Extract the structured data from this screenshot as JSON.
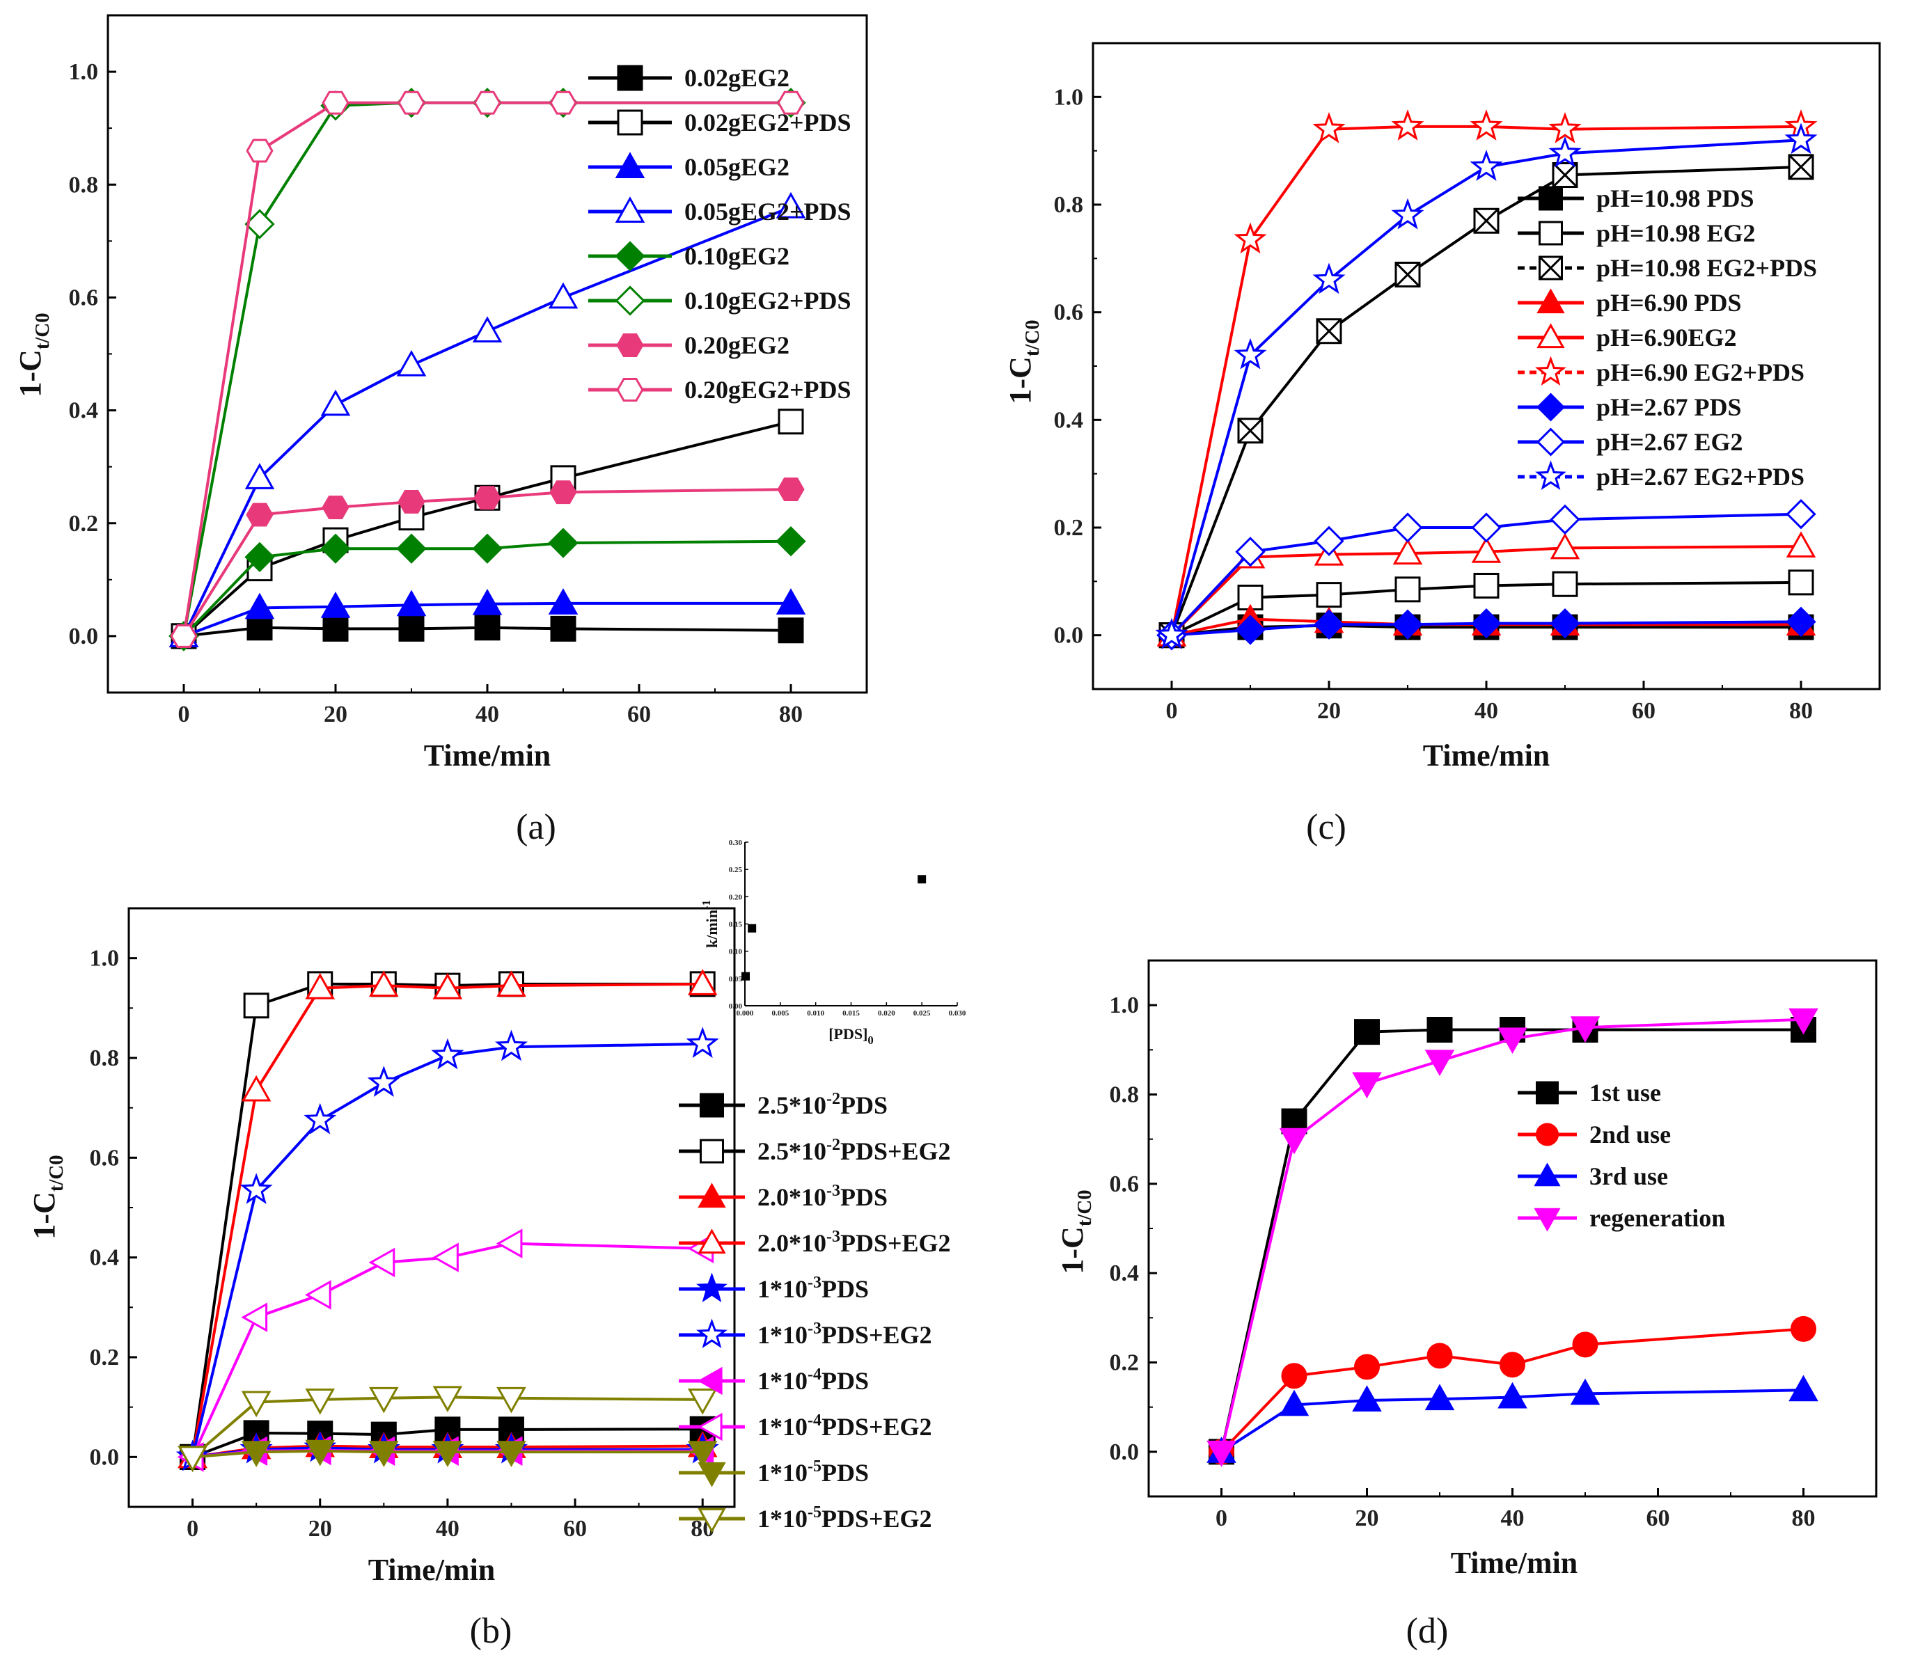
{
  "chart_data": [
    {
      "id": "a",
      "type": "line",
      "panel_label": "(a)",
      "xlabel": "Time/min",
      "ylabel": "1-C_t/C_0",
      "xlim": [
        -10,
        90
      ],
      "ylim": [
        -0.1,
        1.1
      ],
      "xticks": [
        "0",
        "20",
        "40",
        "60",
        "80"
      ],
      "yticks": [
        "0.0",
        "0.2",
        "0.4",
        "0.6",
        "0.8",
        "1.0"
      ],
      "x": [
        0,
        10,
        20,
        30,
        40,
        50,
        80
      ],
      "legend_position": "top-right",
      "series": [
        {
          "name": "0.02gEG2",
          "color": "#000000",
          "marker": "square",
          "filled": true,
          "values": [
            0,
            0.015,
            0.013,
            0.013,
            0.015,
            0.013,
            0.01
          ]
        },
        {
          "name": "0.02gEG2+PDS",
          "color": "#000000",
          "marker": "square",
          "filled": false,
          "values": [
            0,
            0.12,
            0.17,
            0.21,
            0.245,
            0.28,
            0.38
          ]
        },
        {
          "name": "0.05gEG2",
          "color": "#0000ff",
          "marker": "triangle",
          "filled": true,
          "values": [
            0,
            0.05,
            0.052,
            0.055,
            0.057,
            0.058,
            0.058
          ]
        },
        {
          "name": "0.05gEG2+PDS",
          "color": "#0000ff",
          "marker": "triangle",
          "filled": false,
          "values": [
            0,
            0.28,
            0.41,
            0.48,
            0.54,
            0.6,
            0.76
          ]
        },
        {
          "name": "0.10gEG2",
          "color": "#008000",
          "marker": "diamond",
          "filled": true,
          "values": [
            0,
            0.14,
            0.155,
            0.155,
            0.155,
            0.165,
            0.168
          ]
        },
        {
          "name": "0.10gEG2+PDS",
          "color": "#008000",
          "marker": "diamond",
          "filled": false,
          "values": [
            0,
            0.73,
            0.94,
            0.945,
            0.945,
            0.945,
            0.945
          ]
        },
        {
          "name": "0.20gEG2",
          "color": "#e8397a",
          "marker": "hexagon",
          "filled": true,
          "values": [
            0,
            0.215,
            0.228,
            0.238,
            0.245,
            0.255,
            0.26
          ]
        },
        {
          "name": "0.20gEG2+PDS",
          "color": "#e8397a",
          "marker": "hexagon",
          "filled": false,
          "values": [
            0,
            0.86,
            0.945,
            0.945,
            0.945,
            0.945,
            0.945
          ]
        }
      ]
    },
    {
      "id": "c",
      "type": "line",
      "panel_label": "(c)",
      "xlabel": "Time/min",
      "ylabel": "1-C_t/C_0",
      "xlim": [
        -10,
        90
      ],
      "ylim": [
        -0.1,
        1.1
      ],
      "xticks": [
        "0",
        "20",
        "40",
        "60",
        "80"
      ],
      "yticks": [
        "0.0",
        "0.2",
        "0.4",
        "0.6",
        "0.8",
        "1.0"
      ],
      "x": [
        0,
        10,
        20,
        30,
        40,
        50,
        80
      ],
      "legend_position": "center-right",
      "series": [
        {
          "name": "pH=10.98 PDS",
          "color": "#000000",
          "marker": "square",
          "filled": true,
          "values": [
            0,
            0.015,
            0.018,
            0.015,
            0.015,
            0.015,
            0.015
          ]
        },
        {
          "name": "pH=10.98 EG2",
          "color": "#000000",
          "marker": "square",
          "filled": false,
          "values": [
            0,
            0.07,
            0.075,
            0.085,
            0.092,
            0.095,
            0.098
          ]
        },
        {
          "name": "pH=10.98 EG2+PDS",
          "color": "#000000",
          "marker": "boxcross",
          "filled": false,
          "dashed": true,
          "values": [
            0,
            0.38,
            0.565,
            0.67,
            0.77,
            0.855,
            0.87
          ]
        },
        {
          "name": "pH=6.90 PDS",
          "color": "#ff0000",
          "marker": "triangle",
          "filled": true,
          "values": [
            0,
            0.03,
            0.025,
            0.02,
            0.02,
            0.02,
            0.02
          ]
        },
        {
          "name": "pH=6.90EG2",
          "color": "#ff0000",
          "marker": "triangle",
          "filled": false,
          "values": [
            0,
            0.145,
            0.15,
            0.152,
            0.155,
            0.162,
            0.165
          ]
        },
        {
          "name": "pH=6.90 EG2+PDS",
          "color": "#ff0000",
          "marker": "star",
          "filled": false,
          "dashed": true,
          "values": [
            0,
            0.735,
            0.94,
            0.945,
            0.945,
            0.94,
            0.945
          ]
        },
        {
          "name": "pH=2.67 PDS",
          "color": "#0000ff",
          "marker": "diamond",
          "filled": true,
          "values": [
            0,
            0.01,
            0.02,
            0.02,
            0.022,
            0.022,
            0.025
          ]
        },
        {
          "name": "pH=2.67 EG2",
          "color": "#0000ff",
          "marker": "diamond",
          "filled": false,
          "values": [
            0,
            0.155,
            0.175,
            0.2,
            0.2,
            0.215,
            0.225
          ]
        },
        {
          "name": "pH=2.67 EG2+PDS",
          "color": "#0000ff",
          "marker": "star",
          "filled": false,
          "dashed": true,
          "values": [
            0,
            0.52,
            0.66,
            0.78,
            0.87,
            0.895,
            0.92
          ]
        }
      ]
    },
    {
      "id": "b",
      "type": "line",
      "panel_label": "(b)",
      "xlabel": "Time/min",
      "ylabel": "1-C_t/C_0",
      "xlim": [
        -10,
        85
      ],
      "ylim": [
        -0.1,
        1.1
      ],
      "xticks": [
        "0",
        "20",
        "40",
        "60",
        "80"
      ],
      "yticks": [
        "0.0",
        "0.2",
        "0.4",
        "0.6",
        "0.8",
        "1.0"
      ],
      "x": [
        0,
        10,
        20,
        30,
        40,
        50,
        80
      ],
      "legend_position": "right",
      "series": [
        {
          "name": "2.5*10^-2PDS",
          "color": "#000000",
          "marker": "square",
          "filled": true,
          "values": [
            0,
            0.048,
            0.047,
            0.045,
            0.055,
            0.055,
            0.056
          ]
        },
        {
          "name": "2.5*10^-2PDS+EG2",
          "color": "#000000",
          "marker": "square",
          "filled": false,
          "values": [
            0,
            0.905,
            0.948,
            0.948,
            0.945,
            0.948,
            0.948
          ]
        },
        {
          "name": "2.0*10^-3PDS",
          "color": "#ff0000",
          "marker": "triangle",
          "filled": true,
          "values": [
            0,
            0.018,
            0.022,
            0.02,
            0.02,
            0.02,
            0.022
          ]
        },
        {
          "name": "2.0*10^-3PDS+EG2",
          "color": "#ff0000",
          "marker": "triangle",
          "filled": false,
          "values": [
            0,
            0.735,
            0.94,
            0.945,
            0.94,
            0.945,
            0.948
          ]
        },
        {
          "name": "1*10^-3PDS",
          "color": "#0000ff",
          "marker": "star",
          "filled": true,
          "values": [
            0,
            0.015,
            0.018,
            0.015,
            0.015,
            0.015,
            0.015
          ]
        },
        {
          "name": "1*10^-3PDS+EG2",
          "color": "#0000ff",
          "marker": "star",
          "filled": false,
          "values": [
            0,
            0.535,
            0.675,
            0.75,
            0.805,
            0.822,
            0.828
          ]
        },
        {
          "name": "1*10^-4PDS",
          "color": "#ff00ff",
          "marker": "triangle-left",
          "filled": true,
          "values": [
            0,
            0.012,
            0.013,
            0.012,
            0.012,
            0.012,
            0.012
          ]
        },
        {
          "name": "1*10^-4PDS+EG2",
          "color": "#ff00ff",
          "marker": "triangle-left",
          "filled": false,
          "values": [
            0,
            0.28,
            0.325,
            0.39,
            0.4,
            0.428,
            0.418
          ]
        },
        {
          "name": "1*10^-5PDS",
          "color": "#808000",
          "marker": "triangle-down",
          "filled": true,
          "values": [
            0,
            0.01,
            0.012,
            0.01,
            0.01,
            0.01,
            0.01
          ]
        },
        {
          "name": "1*10^-5PDS+EG2",
          "color": "#808000",
          "marker": "triangle-down",
          "filled": false,
          "values": [
            0,
            0.11,
            0.115,
            0.118,
            0.12,
            0.118,
            0.115
          ]
        }
      ]
    },
    {
      "id": "b-inset",
      "type": "scatter",
      "xlabel": "[PDS]_0",
      "ylabel": "k/min^-1",
      "xlim": [
        0,
        0.03
      ],
      "ylim": [
        0,
        0.3
      ],
      "xticks": [
        "0.000",
        "0.005",
        "0.010",
        "0.015",
        "0.020",
        "0.025",
        "0.030"
      ],
      "yticks": [
        "0.00",
        "0.05",
        "0.10",
        "0.15",
        "0.20",
        "0.25",
        "0.30"
      ],
      "points": [
        [
          0.0001,
          0.054
        ],
        [
          0.001,
          0.142
        ],
        [
          0.025,
          0.232
        ]
      ]
    },
    {
      "id": "d",
      "type": "line",
      "panel_label": "(d)",
      "xlabel": "Time/min",
      "ylabel": "1-C_t/C_0",
      "xlim": [
        -10,
        90
      ],
      "ylim": [
        -0.1,
        1.1
      ],
      "xticks": [
        "0",
        "20",
        "40",
        "60",
        "80"
      ],
      "yticks": [
        "0.0",
        "0.2",
        "0.4",
        "0.6",
        "0.8",
        "1.0"
      ],
      "x": [
        0,
        10,
        20,
        30,
        40,
        50,
        80
      ],
      "legend_position": "center-right",
      "series": [
        {
          "name": "1st use",
          "color": "#000000",
          "marker": "square",
          "filled": true,
          "values": [
            0,
            0.74,
            0.94,
            0.945,
            0.945,
            0.945,
            0.945
          ]
        },
        {
          "name": "2nd use",
          "color": "#ff0000",
          "marker": "circle",
          "filled": true,
          "values": [
            0,
            0.17,
            0.19,
            0.215,
            0.195,
            0.24,
            0.275
          ]
        },
        {
          "name": "3rd use",
          "color": "#0000ff",
          "marker": "triangle",
          "filled": true,
          "values": [
            0,
            0.105,
            0.115,
            0.118,
            0.122,
            0.13,
            0.138
          ]
        },
        {
          "name": "regeneration",
          "color": "#ff00ff",
          "marker": "triangle-down",
          "filled": true,
          "values": [
            0,
            0.7,
            0.825,
            0.875,
            0.925,
            0.95,
            0.968
          ]
        }
      ]
    }
  ]
}
